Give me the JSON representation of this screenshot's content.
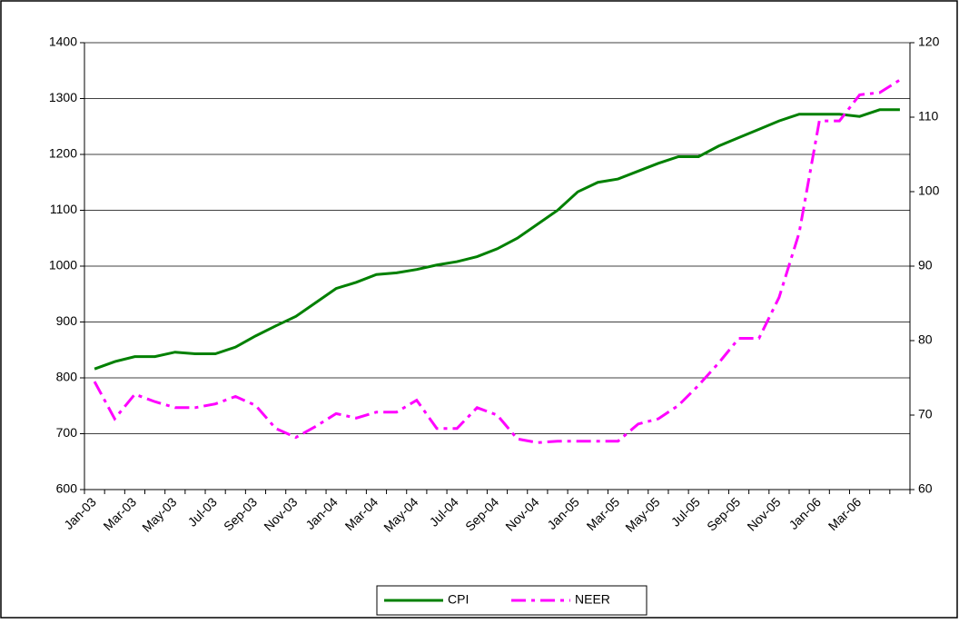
{
  "chart_data": {
    "type": "line",
    "categories": [
      "Jan-03",
      null,
      "Mar-03",
      null,
      "May-03",
      null,
      "Jul-03",
      null,
      "Sep-03",
      null,
      "Nov-03",
      null,
      "Jan-04",
      null,
      "Mar-04",
      null,
      "May-04",
      null,
      "Jul-04",
      null,
      "Sep-04",
      null,
      "Nov-04",
      null,
      "Jan-05",
      null,
      "Mar-05",
      null,
      "May-05",
      null,
      "Jul-05",
      null,
      "Sep-05",
      null,
      "Nov-05",
      null,
      "Jan-06",
      null,
      "Mar-06",
      null,
      null
    ],
    "series": [
      {
        "name": "CPI",
        "color": "#008000",
        "values": [
          816,
          829,
          838,
          838,
          846,
          843,
          843,
          855,
          875,
          893,
          910,
          935,
          960,
          971,
          985,
          988,
          994,
          1002,
          1008,
          1017,
          1031,
          1050,
          1075,
          1100,
          1133,
          1150,
          1156,
          1170,
          1184,
          1196,
          1196,
          1215,
          1230,
          1245,
          1260,
          1272,
          1272,
          1272,
          1268,
          1280,
          1280
        ]
      },
      {
        "name": "NEER",
        "color": "#ff00ff",
        "axis": "y2",
        "dash": "dashdot",
        "values": [
          74.5,
          69.5,
          72.8,
          71.8,
          71,
          71,
          71.5,
          72.5,
          71.3,
          68.2,
          67,
          68.5,
          70.2,
          69.6,
          70.4,
          70.4,
          72,
          68.2,
          68.2,
          71,
          70,
          66.8,
          66.3,
          66.5,
          66.5,
          66.5,
          66.5,
          68.8,
          69.5,
          71.3,
          74,
          77,
          80.3,
          80.3,
          85.8,
          94.5,
          109.5,
          109.5,
          113,
          113.3,
          115
        ]
      }
    ],
    "ylim": [
      600,
      1400
    ],
    "yticks": [
      600,
      700,
      800,
      900,
      1000,
      1100,
      1200,
      1300,
      1400
    ],
    "y2lim": [
      60,
      120
    ],
    "y2ticks": [
      60,
      70,
      80,
      90,
      100,
      110,
      120
    ],
    "grid": true,
    "legend": "bottom"
  }
}
